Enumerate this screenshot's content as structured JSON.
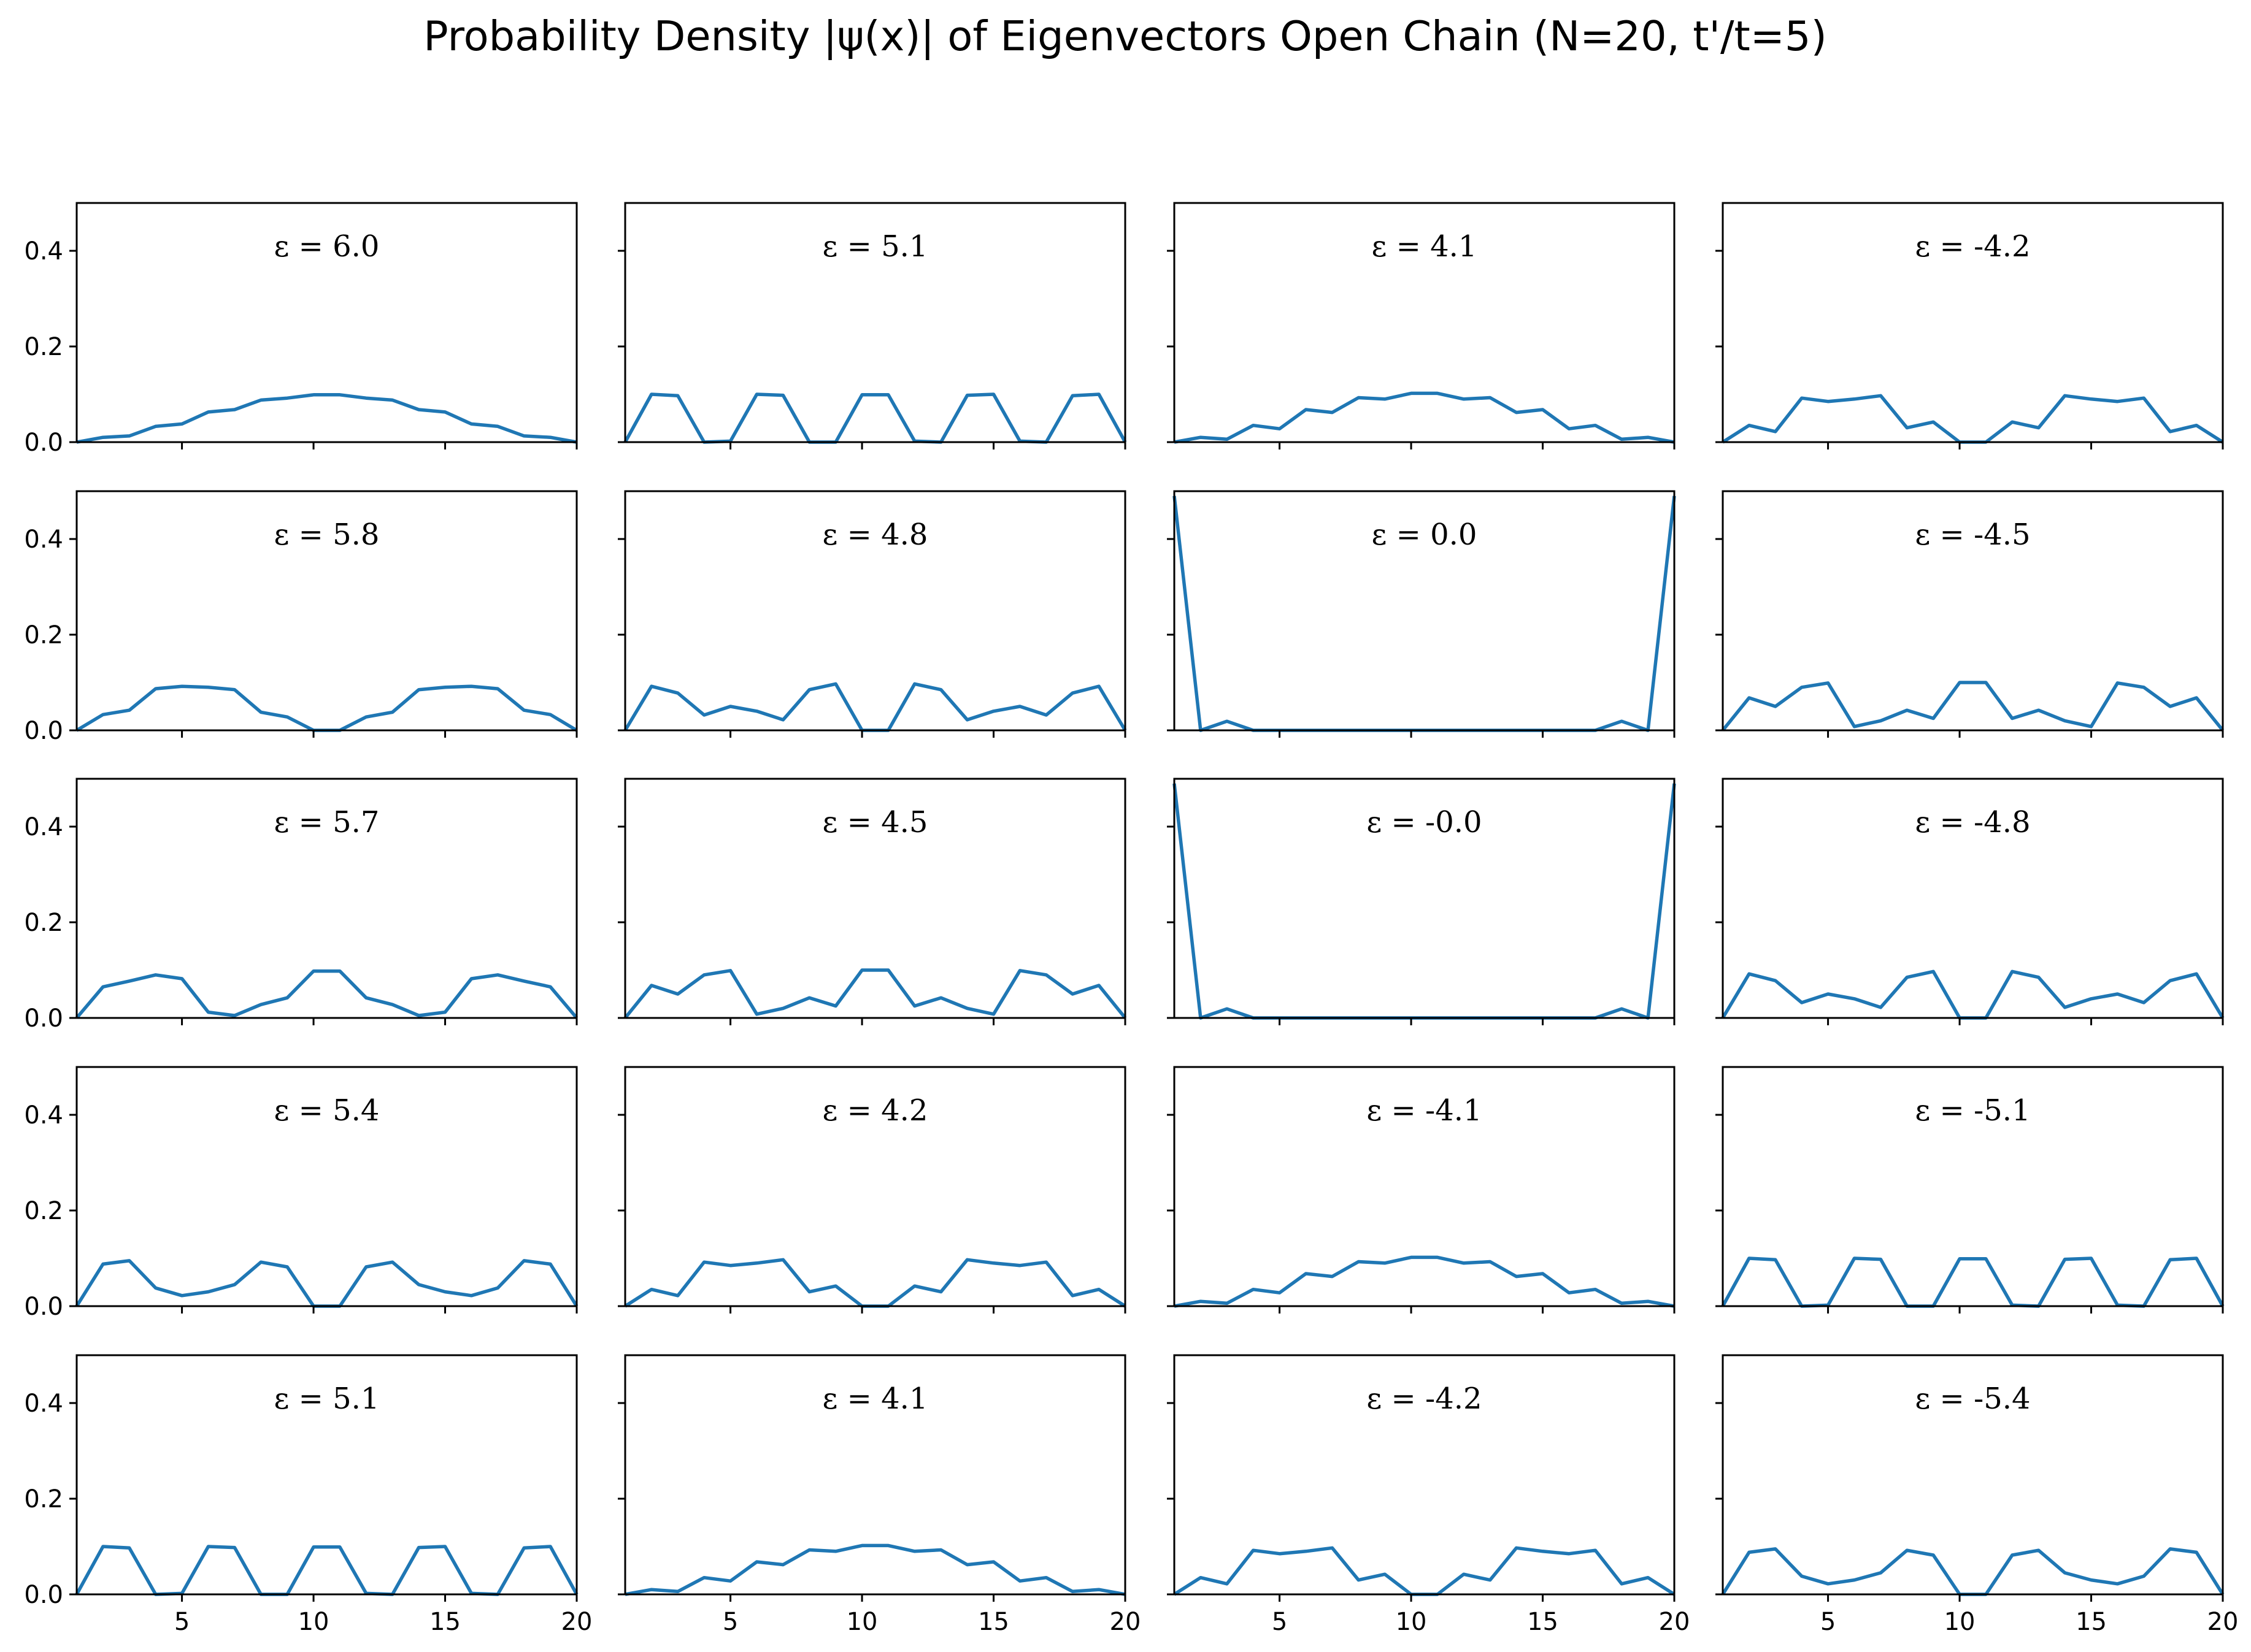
{
  "chart_data": {
    "title": "Probability Density |ψ(x)| of Eigenvectors Open Chain (N=20, t'/t=5)",
    "type": "line",
    "grid": false,
    "layout": "5 rows x 4 columns, column-major order, shared axes",
    "xlim": [
      1,
      20
    ],
    "ylim": [
      0,
      0.5
    ],
    "x_ticks": [
      5,
      10,
      15,
      20
    ],
    "y_ticks": [
      "0.0",
      "0.2",
      "0.4"
    ],
    "x": [
      1,
      2,
      3,
      4,
      5,
      6,
      7,
      8,
      9,
      10,
      11,
      12,
      13,
      14,
      15,
      16,
      17,
      18,
      19,
      20
    ],
    "color": "#1f77b4",
    "panels": [
      {
        "label": "ε = 6.0",
        "values": [
          0.0,
          0.01,
          0.013,
          0.033,
          0.038,
          0.063,
          0.068,
          0.088,
          0.092,
          0.099,
          0.099,
          0.092,
          0.088,
          0.068,
          0.063,
          0.038,
          0.033,
          0.013,
          0.01,
          0.0
        ]
      },
      {
        "label": "ε = 5.8",
        "values": [
          0.0,
          0.033,
          0.042,
          0.087,
          0.092,
          0.09,
          0.085,
          0.038,
          0.028,
          0.0,
          0.0,
          0.028,
          0.038,
          0.085,
          0.09,
          0.092,
          0.087,
          0.042,
          0.033,
          0.0
        ]
      },
      {
        "label": "ε = 5.7",
        "values": [
          0.0,
          0.065,
          0.077,
          0.09,
          0.082,
          0.012,
          0.005,
          0.028,
          0.042,
          0.098,
          0.098,
          0.042,
          0.028,
          0.005,
          0.012,
          0.082,
          0.09,
          0.077,
          0.065,
          0.0
        ]
      },
      {
        "label": "ε = 5.4",
        "values": [
          0.0,
          0.088,
          0.095,
          0.038,
          0.022,
          0.03,
          0.045,
          0.092,
          0.082,
          0.0,
          0.0,
          0.082,
          0.092,
          0.045,
          0.03,
          0.022,
          0.038,
          0.095,
          0.088,
          0.0
        ]
      },
      {
        "label": "ε = 5.1",
        "values": [
          0.0,
          0.1,
          0.097,
          0.0,
          0.002,
          0.1,
          0.098,
          0.0,
          0.0,
          0.099,
          0.099,
          0.002,
          0.0,
          0.098,
          0.1,
          0.002,
          0.0,
          0.097,
          0.1,
          0.0
        ]
      },
      {
        "label": "ε = 5.1",
        "values": [
          0.0,
          0.1,
          0.097,
          0.0,
          0.002,
          0.1,
          0.098,
          0.0,
          0.0,
          0.099,
          0.099,
          0.002,
          0.0,
          0.098,
          0.1,
          0.002,
          0.0,
          0.097,
          0.1,
          0.0
        ]
      },
      {
        "label": "ε = 4.8",
        "values": [
          0.0,
          0.092,
          0.078,
          0.032,
          0.05,
          0.04,
          0.022,
          0.085,
          0.097,
          0.0,
          0.0,
          0.097,
          0.085,
          0.022,
          0.04,
          0.05,
          0.032,
          0.078,
          0.092,
          0.0
        ]
      },
      {
        "label": "ε = 4.5",
        "values": [
          0.0,
          0.068,
          0.05,
          0.09,
          0.099,
          0.008,
          0.02,
          0.042,
          0.025,
          0.1,
          0.1,
          0.025,
          0.042,
          0.02,
          0.008,
          0.099,
          0.09,
          0.05,
          0.068,
          0.0
        ]
      },
      {
        "label": "ε = 4.2",
        "values": [
          0.0,
          0.035,
          0.022,
          0.092,
          0.085,
          0.09,
          0.097,
          0.03,
          0.042,
          0.0,
          0.0,
          0.042,
          0.03,
          0.097,
          0.09,
          0.085,
          0.092,
          0.022,
          0.035,
          0.0
        ]
      },
      {
        "label": "ε = 4.1",
        "values": [
          0.0,
          0.01,
          0.006,
          0.035,
          0.028,
          0.068,
          0.062,
          0.093,
          0.09,
          0.102,
          0.102,
          0.09,
          0.093,
          0.062,
          0.068,
          0.028,
          0.035,
          0.006,
          0.01,
          0.0
        ]
      },
      {
        "label": "ε = 4.1",
        "values": [
          0.0,
          0.01,
          0.006,
          0.035,
          0.028,
          0.068,
          0.062,
          0.093,
          0.09,
          0.102,
          0.102,
          0.09,
          0.093,
          0.062,
          0.068,
          0.028,
          0.035,
          0.006,
          0.01,
          0.0
        ]
      },
      {
        "label": "ε = 0.0",
        "values": [
          0.49,
          0.0,
          0.019,
          0.0,
          0.0,
          0.0,
          0.0,
          0.0,
          0.0,
          0.0,
          0.0,
          0.0,
          0.0,
          0.0,
          0.0,
          0.0,
          0.0,
          0.019,
          0.0,
          0.49
        ]
      },
      {
        "label": "ε = -0.0",
        "values": [
          0.49,
          0.0,
          0.019,
          0.0,
          0.0,
          0.0,
          0.0,
          0.0,
          0.0,
          0.0,
          0.0,
          0.0,
          0.0,
          0.0,
          0.0,
          0.0,
          0.0,
          0.019,
          0.0,
          0.49
        ]
      },
      {
        "label": "ε = -4.1",
        "values": [
          0.0,
          0.01,
          0.006,
          0.035,
          0.028,
          0.068,
          0.062,
          0.093,
          0.09,
          0.102,
          0.102,
          0.09,
          0.093,
          0.062,
          0.068,
          0.028,
          0.035,
          0.006,
          0.01,
          0.0
        ]
      },
      {
        "label": "ε = -4.2",
        "values": [
          0.0,
          0.035,
          0.022,
          0.092,
          0.085,
          0.09,
          0.097,
          0.03,
          0.042,
          0.0,
          0.0,
          0.042,
          0.03,
          0.097,
          0.09,
          0.085,
          0.092,
          0.022,
          0.035,
          0.0
        ]
      },
      {
        "label": "ε = -4.2",
        "values": [
          0.0,
          0.035,
          0.022,
          0.092,
          0.085,
          0.09,
          0.097,
          0.03,
          0.042,
          0.0,
          0.0,
          0.042,
          0.03,
          0.097,
          0.09,
          0.085,
          0.092,
          0.022,
          0.035,
          0.0
        ]
      },
      {
        "label": "ε = -4.5",
        "values": [
          0.0,
          0.068,
          0.05,
          0.09,
          0.099,
          0.008,
          0.02,
          0.042,
          0.025,
          0.1,
          0.1,
          0.025,
          0.042,
          0.02,
          0.008,
          0.099,
          0.09,
          0.05,
          0.068,
          0.0
        ]
      },
      {
        "label": "ε = -4.8",
        "values": [
          0.0,
          0.092,
          0.078,
          0.032,
          0.05,
          0.04,
          0.022,
          0.085,
          0.097,
          0.0,
          0.0,
          0.097,
          0.085,
          0.022,
          0.04,
          0.05,
          0.032,
          0.078,
          0.092,
          0.0
        ]
      },
      {
        "label": "ε = -5.1",
        "values": [
          0.0,
          0.1,
          0.097,
          0.0,
          0.002,
          0.1,
          0.098,
          0.0,
          0.0,
          0.099,
          0.099,
          0.002,
          0.0,
          0.098,
          0.1,
          0.002,
          0.0,
          0.097,
          0.1,
          0.0
        ]
      },
      {
        "label": "ε = -5.4",
        "values": [
          0.0,
          0.088,
          0.095,
          0.038,
          0.022,
          0.03,
          0.045,
          0.092,
          0.082,
          0.0,
          0.0,
          0.082,
          0.092,
          0.045,
          0.03,
          0.022,
          0.038,
          0.095,
          0.088,
          0.0
        ]
      }
    ]
  }
}
